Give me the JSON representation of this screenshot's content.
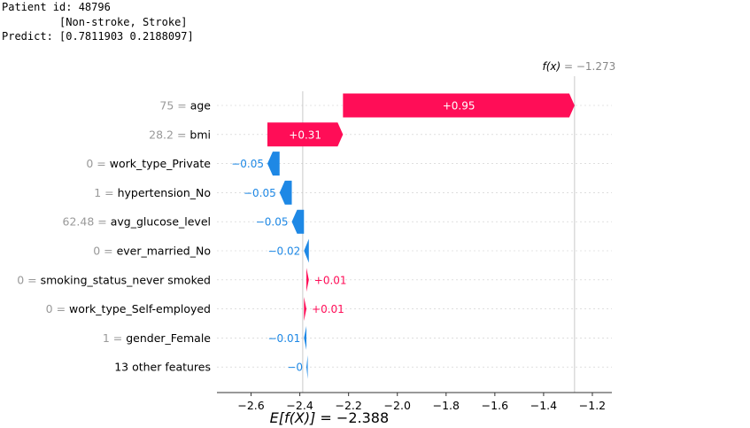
{
  "header": {
    "line1": "Patient id: 48796",
    "line2": "         [Non-stroke, Stroke]",
    "line3": "Predict: [0.7811903 0.2188097]"
  },
  "colors": {
    "positive": "#ff0d57",
    "negative": "#1e88e5",
    "grid": "#cccccc",
    "feature_value_text": "#999999"
  },
  "chart_data": {
    "type": "waterfall",
    "base_value": -2.388,
    "output_value": -1.273,
    "fx_label_main": "f(x)",
    "fx_label_value": " = −1.273",
    "ex_label_main": "E[f(X)]",
    "ex_label_value": " = −2.388",
    "features": [
      {
        "value": "75",
        "name": "age",
        "shap": 0.95,
        "label": "+0.95"
      },
      {
        "value": "28.2",
        "name": "bmi",
        "shap": 0.31,
        "label": "+0.31"
      },
      {
        "value": "0",
        "name": "work_type_Private",
        "shap": -0.05,
        "label": "−0.05"
      },
      {
        "value": "1",
        "name": "hypertension_No",
        "shap": -0.05,
        "label": "−0.05"
      },
      {
        "value": "62.48",
        "name": "avg_glucose_level",
        "shap": -0.05,
        "label": "−0.05"
      },
      {
        "value": "0",
        "name": "ever_married_No",
        "shap": -0.02,
        "label": "−0.02"
      },
      {
        "value": "0",
        "name": "smoking_status_never smoked",
        "shap": 0.01,
        "label": "+0.01"
      },
      {
        "value": "0",
        "name": "work_type_Self-employed",
        "shap": 0.01,
        "label": "+0.01"
      },
      {
        "value": "1",
        "name": "gender_Female",
        "shap": -0.01,
        "label": "−0.01"
      },
      {
        "value": "",
        "name": "13 other features",
        "shap": -0.003,
        "label": "−0"
      }
    ],
    "xlim": [
      -2.74,
      -1.12
    ],
    "xticks": [
      -2.6,
      -2.4,
      -2.2,
      -2.0,
      -1.8,
      -1.6,
      -1.4,
      -1.2
    ],
    "xtick_labels": [
      "−2.6",
      "−2.4",
      "−2.2",
      "−2.0",
      "−1.8",
      "−1.6",
      "−1.4",
      "−1.2"
    ]
  }
}
